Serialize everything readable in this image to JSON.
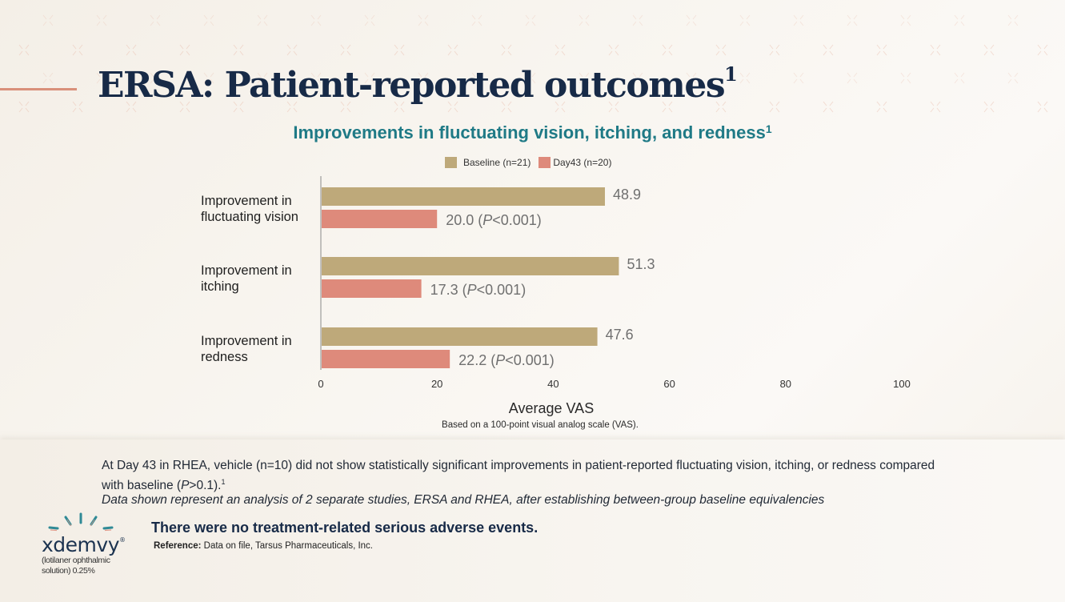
{
  "slide": {
    "title": "ERSA: Patient-reported outcomes",
    "title_superscript": "1",
    "subtitle": "Improvements in fluctuating vision, itching, and redness",
    "subtitle_superscript": "1"
  },
  "colors": {
    "baseline": "#bea97a",
    "day43": "#de8a7b",
    "title": "#172a47",
    "subtitle": "#1f7a86",
    "accent_rule": "#d9907a"
  },
  "legend": [
    {
      "label": "Baseline (n=21)",
      "series": "baseline"
    },
    {
      "label": "Day43 (n=20)",
      "series": "day43"
    }
  ],
  "chart_data": {
    "type": "bar",
    "orientation": "horizontal",
    "title": "Improvements in fluctuating vision, itching, and redness",
    "categories": [
      [
        "Improvement in",
        "fluctuating vision"
      ],
      [
        "Improvement in",
        "itching"
      ],
      [
        "Improvement in",
        "redness"
      ]
    ],
    "series": [
      {
        "name": "Baseline (n=21)",
        "key": "baseline",
        "values": [
          48.9,
          51.3,
          47.6
        ],
        "labels": [
          "48.9",
          "51.3",
          "47.6"
        ]
      },
      {
        "name": "Day43 (n=20)",
        "key": "day43",
        "values": [
          20.0,
          17.3,
          22.2
        ],
        "labels": [
          "20.0  (P<0.001)",
          "17.3   (P<0.001)",
          "22.2   (P<0.001)"
        ]
      }
    ],
    "p_values": [
      "P<0.001",
      "P<0.001",
      "P<0.001"
    ],
    "xlabel": "Average VAS",
    "xnote": "Based on a 100-point visual analog scale (VAS).",
    "ylabel": "",
    "xlim": [
      0,
      100
    ],
    "xticks": [
      0,
      20,
      40,
      60,
      80,
      100
    ],
    "grid": false,
    "legend_position": "top-center"
  },
  "footnotes": {
    "vehicle_note": "At Day 43 in RHEA, vehicle (n=10) did not show statistically significant improvements in patient-reported fluctuating vision, itching, or redness compared with baseline (",
    "vehicle_note_p": "P",
    "vehicle_note_end": ">0.1).",
    "vehicle_note_sup": "1",
    "analysis_note": "Data shown represent an analysis of 2 separate studies, ERSA and RHEA, after establishing between-group baseline equivalencies",
    "safety_statement": "There were no treatment-related serious adverse events.",
    "reference_label": "Reference:",
    "reference_text": " Data on file, Tarsus Pharmaceuticals, Inc."
  },
  "logo": {
    "wordmark": "xdemvy",
    "registered": "®",
    "generic_name_line1": "(lotilaner ophthalmic",
    "generic_name_line2": "solution) 0.25%"
  }
}
